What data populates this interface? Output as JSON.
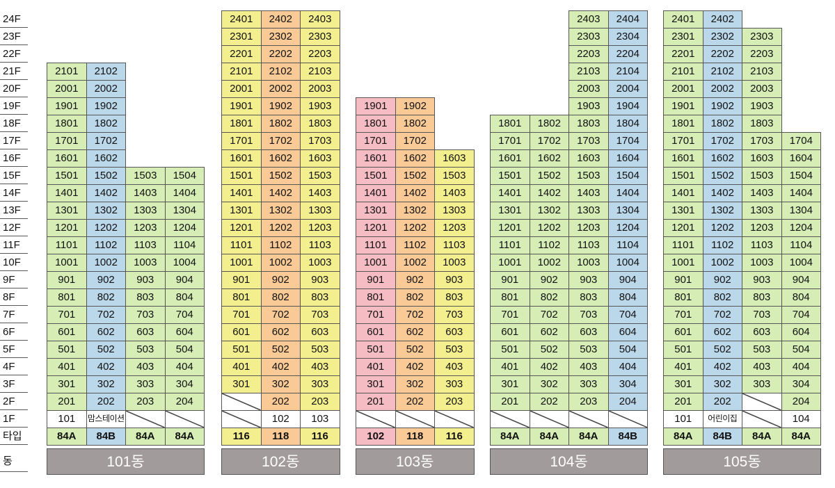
{
  "floor_labels": [
    "24F",
    "23F",
    "22F",
    "21F",
    "20F",
    "19F",
    "18F",
    "17F",
    "16F",
    "15F",
    "14F",
    "13F",
    "12F",
    "11F",
    "10F",
    "9F",
    "8F",
    "7F",
    "6F",
    "5F",
    "4F",
    "3F",
    "2F",
    "1F"
  ],
  "type_row_label": "타입",
  "dong_row_label": "동",
  "colors": {
    "green": "#d6eeb5",
    "blue": "#bbd7ea",
    "yellow": "#f4ef8e",
    "orange": "#f9ca96",
    "pink": "#f5bcc3"
  },
  "buildings": [
    {
      "name": "101동",
      "columns": [
        {
          "type": "84A",
          "color": "green",
          "top": 21,
          "units": {
            "1": "101",
            "2": "201"
          }
        },
        {
          "type": "84B",
          "color": "blue",
          "top": 21,
          "units": {
            "1": "맘스테이션",
            "2": "202"
          }
        },
        {
          "type": "84A",
          "color": "green",
          "top": 15,
          "units": {
            "1": "",
            "2": "203"
          }
        },
        {
          "type": "84A",
          "color": "green",
          "top": 15,
          "units": {
            "1": "",
            "2": "204"
          }
        }
      ]
    },
    {
      "name": "102동",
      "columns": [
        {
          "type": "116",
          "color": "yellow",
          "top": 24,
          "units": {
            "1": "",
            "2": ""
          }
        },
        {
          "type": "118",
          "color": "orange",
          "top": 24,
          "units": {
            "1": "102",
            "2": "202"
          }
        },
        {
          "type": "116",
          "color": "yellow",
          "top": 24,
          "units": {
            "1": "103",
            "2": "203"
          }
        }
      ]
    },
    {
      "name": "103동",
      "columns": [
        {
          "type": "102",
          "color": "pink",
          "top": 19,
          "units": {
            "1": "",
            "2": "201"
          }
        },
        {
          "type": "118",
          "color": "orange",
          "top": 19,
          "units": {
            "1": "",
            "2": "202"
          }
        },
        {
          "type": "116",
          "color": "yellow",
          "top": 16,
          "units": {
            "1": "",
            "2": "203"
          }
        }
      ]
    },
    {
      "name": "104동",
      "columns": [
        {
          "type": "84A",
          "color": "green",
          "top": 18,
          "units": {
            "1": "",
            "2": "201"
          }
        },
        {
          "type": "84A",
          "color": "green",
          "top": 18,
          "units": {
            "1": "",
            "2": "202"
          }
        },
        {
          "type": "84A",
          "color": "green",
          "top": 24,
          "units": {
            "1": "",
            "2": "203"
          }
        },
        {
          "type": "84B",
          "color": "blue",
          "top": 24,
          "units": {
            "1": "",
            "2": "204"
          }
        }
      ]
    },
    {
      "name": "105동",
      "columns": [
        {
          "type": "84A",
          "color": "green",
          "top": 24,
          "units": {
            "1": "101",
            "2": "201"
          }
        },
        {
          "type": "84B",
          "color": "blue",
          "top": 24,
          "units": {
            "1": "어린이집",
            "2": "202"
          }
        },
        {
          "type": "84A",
          "color": "green",
          "top": 23,
          "units": {
            "1": "",
            "2": ""
          }
        },
        {
          "type": "84A",
          "color": "green",
          "top": 17,
          "units": {
            "1": "104",
            "2": "204"
          }
        }
      ]
    }
  ]
}
